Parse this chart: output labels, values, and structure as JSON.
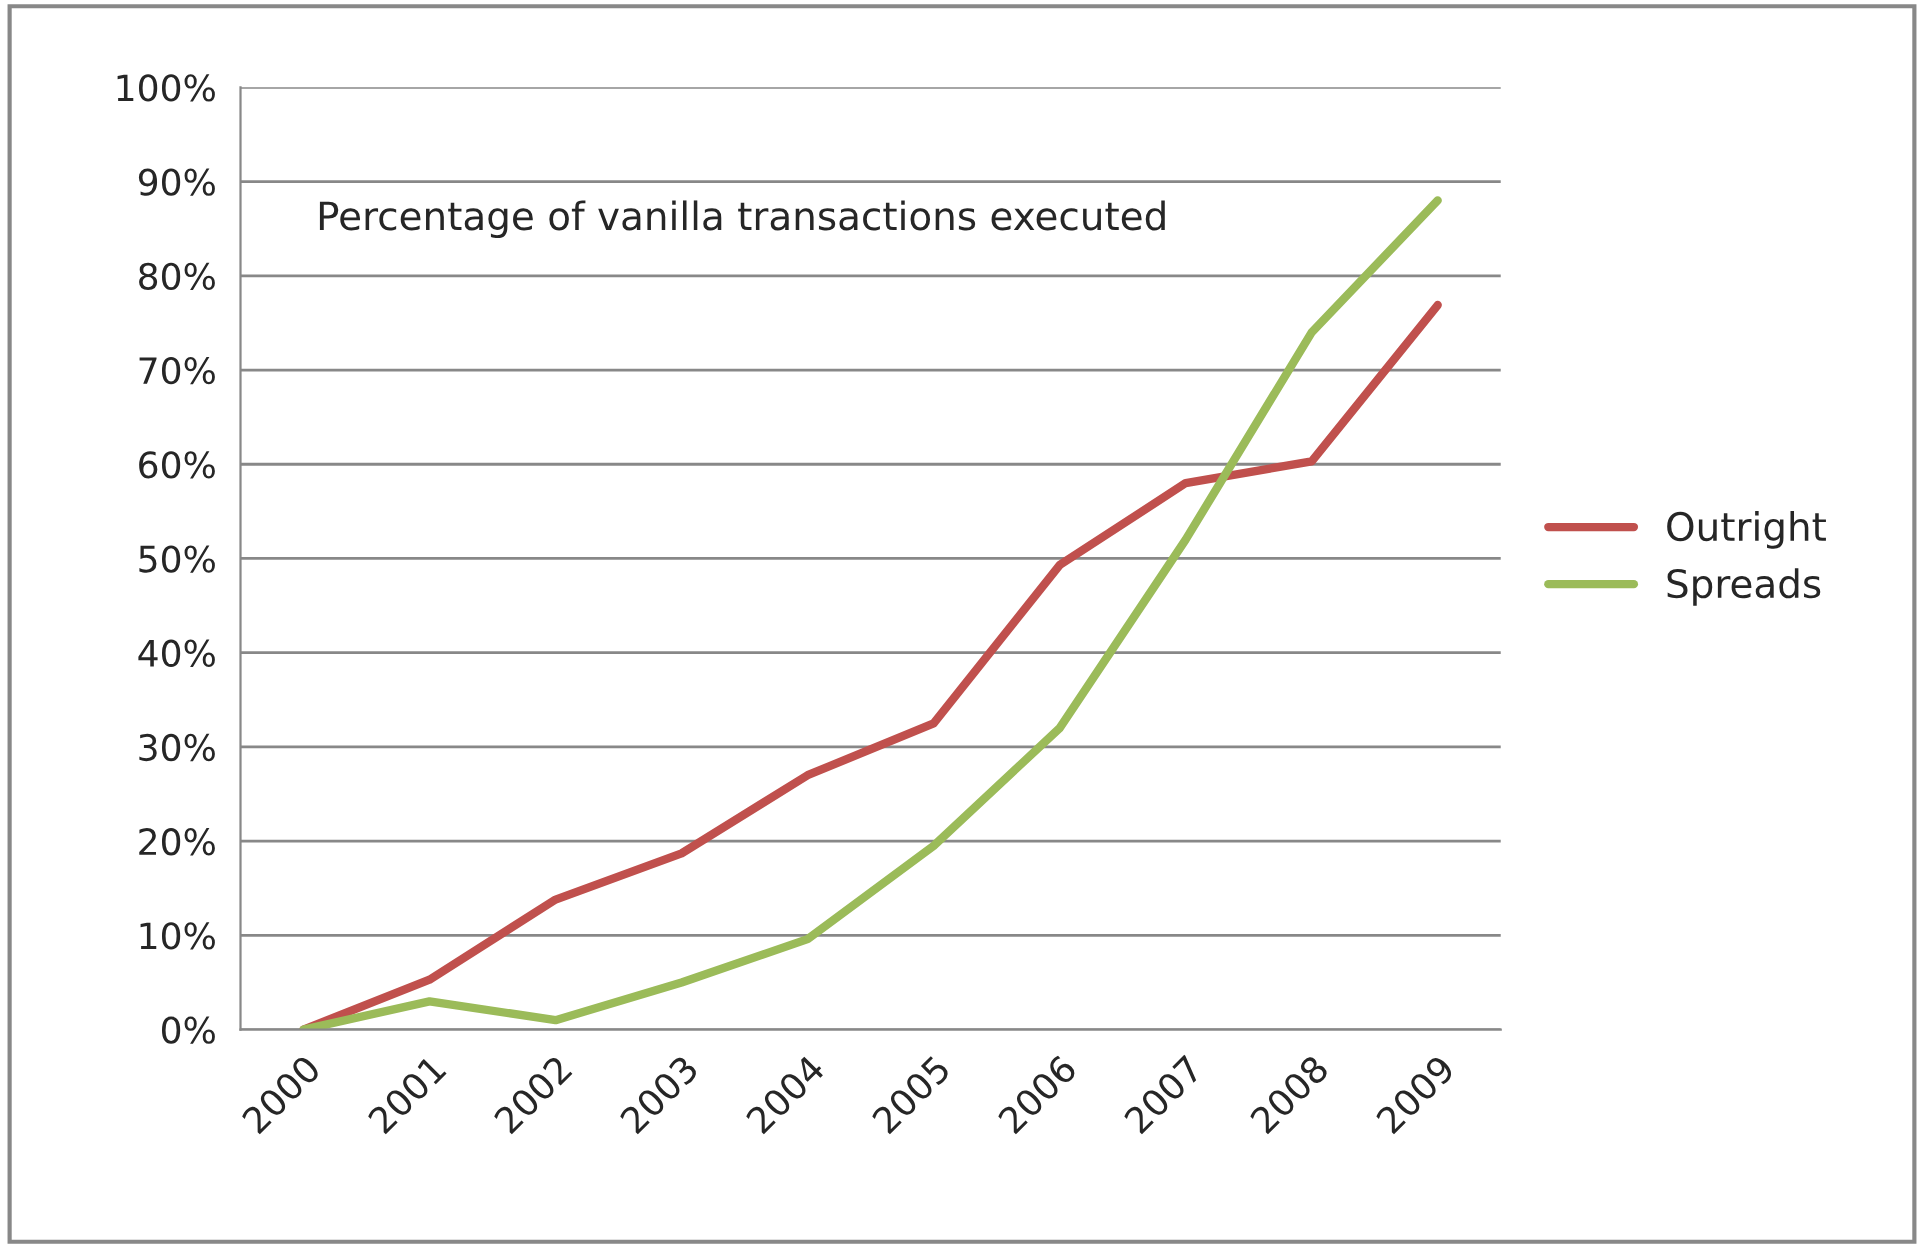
{
  "chart_data": {
    "type": "line",
    "annotations": [
      "Percentage of vanilla transactions executed"
    ],
    "categories": [
      "2000",
      "2001",
      "2002",
      "2003",
      "2004",
      "2005",
      "2006",
      "2007",
      "2008",
      "2009"
    ],
    "series": [
      {
        "name": "Outright",
        "color": "#c0504d",
        "values": [
          0,
          5.3,
          13.8,
          18.7,
          27,
          32.5,
          49.3,
          58,
          60.3,
          76.9
        ]
      },
      {
        "name": "Spreads",
        "color": "#9bbb59",
        "values": [
          0,
          3,
          1,
          5,
          9.6,
          19.5,
          32,
          52,
          74,
          88
        ]
      }
    ],
    "ylim": [
      0,
      100
    ],
    "yticks": [
      {
        "value": 0,
        "label": "0%"
      },
      {
        "value": 10,
        "label": "10%"
      },
      {
        "value": 20,
        "label": "20%"
      },
      {
        "value": 30,
        "label": "30%"
      },
      {
        "value": 40,
        "label": "40%"
      },
      {
        "value": 50,
        "label": "50%"
      },
      {
        "value": 60,
        "label": "60%"
      },
      {
        "value": 70,
        "label": "70%"
      },
      {
        "value": 80,
        "label": "80%"
      },
      {
        "value": 90,
        "label": "90%"
      },
      {
        "value": 100,
        "label": "100%"
      }
    ],
    "grid": "y",
    "legend": "right",
    "marker": "none",
    "line_style": "solid"
  }
}
